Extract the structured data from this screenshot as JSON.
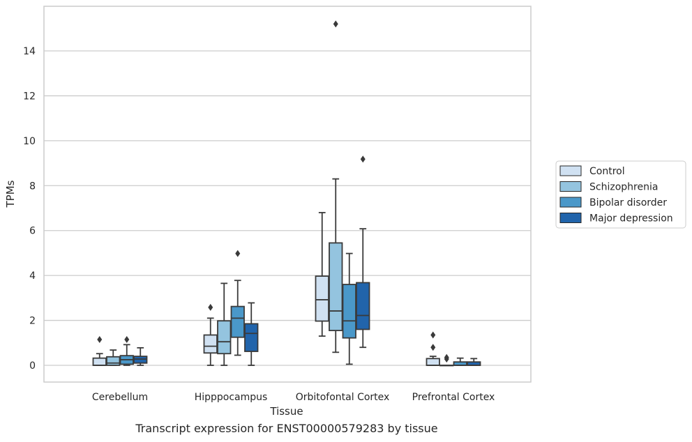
{
  "caption": "Transcript expression for ENST00000579283 by tissue",
  "chart_data": {
    "type": "box",
    "xlabel": "Tissue",
    "ylabel": "TPMs",
    "ylim": [
      -0.75,
      16
    ],
    "yticks": [
      0,
      2,
      4,
      6,
      8,
      10,
      12,
      14
    ],
    "grid": "horizontal",
    "legend_position": "right",
    "categories": [
      "Cerebellum",
      "Hipppocampus",
      "Orbitofontal Cortex",
      "Prefrontal Cortex"
    ],
    "series": [
      {
        "name": "Control",
        "color": "#d0e1f2",
        "boxes": [
          {
            "whislo": 0.0,
            "q1": 0.0,
            "med": 0.0,
            "q3": 0.32,
            "whishi": 0.52,
            "fliers": [
              1.15
            ]
          },
          {
            "whislo": 0.0,
            "q1": 0.55,
            "med": 0.85,
            "q3": 1.35,
            "whishi": 2.1,
            "fliers": [
              2.58
            ]
          },
          {
            "whislo": 1.3,
            "q1": 1.97,
            "med": 2.92,
            "q3": 3.97,
            "whishi": 6.8,
            "fliers": []
          },
          {
            "whislo": 0.0,
            "q1": 0.0,
            "med": 0.0,
            "q3": 0.3,
            "whishi": 0.4,
            "fliers": [
              0.8,
              1.35
            ]
          }
        ]
      },
      {
        "name": "Schizophrenia",
        "color": "#94c4df",
        "boxes": [
          {
            "whislo": 0.0,
            "q1": 0.0,
            "med": 0.1,
            "q3": 0.38,
            "whishi": 0.68,
            "fliers": []
          },
          {
            "whislo": 0.0,
            "q1": 0.52,
            "med": 1.05,
            "q3": 1.98,
            "whishi": 3.65,
            "fliers": []
          },
          {
            "whislo": 0.58,
            "q1": 1.55,
            "med": 2.42,
            "q3": 5.45,
            "whishi": 8.3,
            "fliers": [
              15.2
            ]
          },
          {
            "whislo": 0.0,
            "q1": 0.0,
            "med": 0.0,
            "q3": 0.0,
            "whishi": 0.0,
            "fliers": [
              0.28,
              0.35
            ]
          }
        ]
      },
      {
        "name": "Bipolar disorder",
        "color": "#4a98c9",
        "boxes": [
          {
            "whislo": 0.0,
            "q1": 0.05,
            "med": 0.25,
            "q3": 0.43,
            "whishi": 0.92,
            "fliers": [
              1.15
            ]
          },
          {
            "whislo": 0.45,
            "q1": 1.25,
            "med": 2.1,
            "q3": 2.62,
            "whishi": 3.78,
            "fliers": [
              4.98
            ]
          },
          {
            "whislo": 0.05,
            "q1": 1.22,
            "med": 1.98,
            "q3": 3.6,
            "whishi": 4.98,
            "fliers": []
          },
          {
            "whislo": 0.0,
            "q1": 0.0,
            "med": 0.0,
            "q3": 0.15,
            "whishi": 0.32,
            "fliers": []
          }
        ]
      },
      {
        "name": "Major depression",
        "color": "#2164ab",
        "boxes": [
          {
            "whislo": 0.0,
            "q1": 0.1,
            "med": 0.28,
            "q3": 0.4,
            "whishi": 0.78,
            "fliers": []
          },
          {
            "whislo": 0.0,
            "q1": 0.62,
            "med": 1.42,
            "q3": 1.85,
            "whishi": 2.78,
            "fliers": []
          },
          {
            "whislo": 0.8,
            "q1": 1.6,
            "med": 2.22,
            "q3": 3.68,
            "whishi": 6.08,
            "fliers": [
              9.18
            ]
          },
          {
            "whislo": 0.0,
            "q1": 0.0,
            "med": 0.0,
            "q3": 0.15,
            "whishi": 0.3,
            "fliers": []
          }
        ]
      }
    ]
  }
}
